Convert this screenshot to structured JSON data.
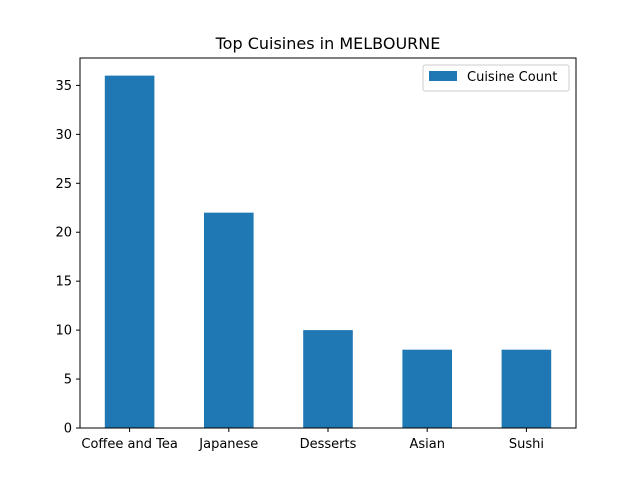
{
  "chart_data": {
    "type": "bar",
    "title": "Top Cuisines in MELBOURNE",
    "xlabel": "",
    "ylabel": "",
    "categories": [
      "Coffee and Tea",
      "Japanese",
      "Desserts",
      "Asian",
      "Sushi"
    ],
    "series": [
      {
        "name": "Cuisine Count",
        "values": [
          36,
          22,
          10,
          8,
          8
        ],
        "color": "#1f77b4"
      }
    ],
    "ylim": [
      0,
      37.8
    ],
    "yticks": [
      0,
      5,
      10,
      15,
      20,
      25,
      30,
      35
    ],
    "grid": false,
    "legend_position": "top-right"
  }
}
